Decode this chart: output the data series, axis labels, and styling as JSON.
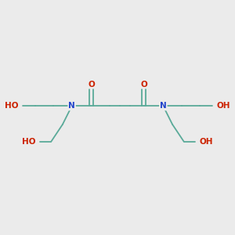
{
  "background_color": "#ebebeb",
  "bond_color": "#5aaa99",
  "oxygen_color": "#cc2200",
  "nitrogen_color": "#2244cc",
  "font_size": 7.5,
  "fig_size": [
    3.0,
    3.0
  ],
  "dpi": 100,
  "bond_lw": 1.3,
  "xlim": [
    0,
    10
  ],
  "ylim": [
    0,
    10
  ],
  "N1x": 3.0,
  "N1y": 5.5,
  "C1x": 3.85,
  "C1y": 5.5,
  "O1x": 3.85,
  "O1y": 6.45,
  "Ca1x": 4.65,
  "Ca1y": 5.5,
  "Ca2x": 5.1,
  "Ca2y": 5.5,
  "Ca3x": 5.55,
  "Ca3y": 5.5,
  "C2x": 6.15,
  "C2y": 5.5,
  "O2x": 6.15,
  "O2y": 6.45,
  "N2x": 7.0,
  "N2y": 5.5,
  "HE1_C1x": 2.2,
  "HE1_C1y": 5.5,
  "HE1_C2x": 1.4,
  "HE1_C2y": 5.5,
  "HE1_Ox": 0.85,
  "HE1_Oy": 5.5,
  "HE2_C1x": 2.6,
  "HE2_C1y": 4.7,
  "HE2_C2x": 2.1,
  "HE2_C2y": 3.95,
  "HE2_Ox": 1.6,
  "HE2_Oy": 3.95,
  "HE3_C1x": 7.8,
  "HE3_C1y": 5.5,
  "HE3_C2x": 8.6,
  "HE3_C2y": 5.5,
  "HE3_Ox": 9.15,
  "HE3_Oy": 5.5,
  "HE4_C1x": 7.4,
  "HE4_C1y": 4.7,
  "HE4_C2x": 7.9,
  "HE4_C2y": 3.95,
  "HE4_Ox": 8.4,
  "HE4_Oy": 3.95
}
